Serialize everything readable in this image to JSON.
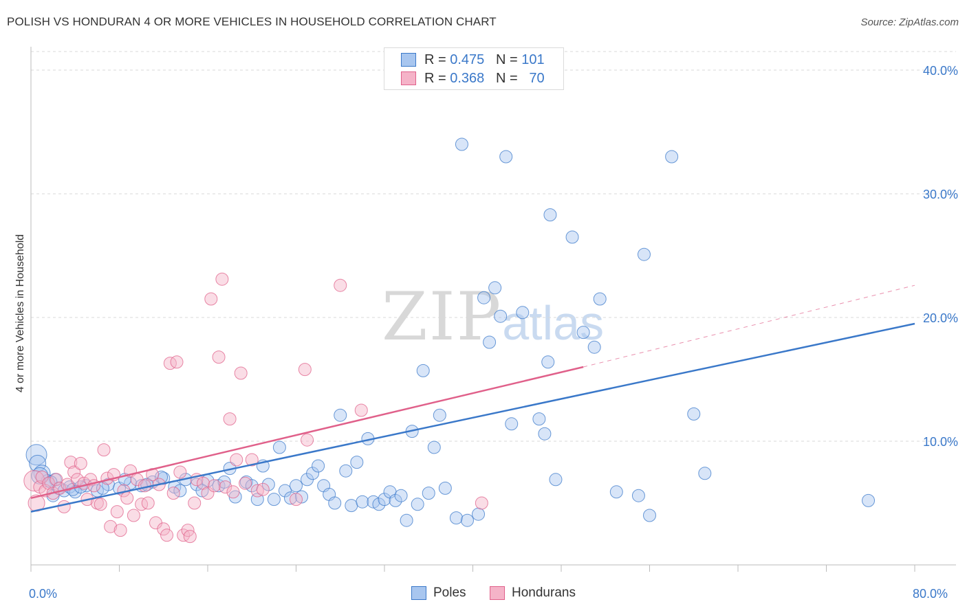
{
  "title": "POLISH VS HONDURAN 4 OR MORE VEHICLES IN HOUSEHOLD CORRELATION CHART",
  "source": "Source: ZipAtlas.com",
  "watermark": {
    "zip": "ZIP",
    "atlas": "atlas"
  },
  "colors": {
    "poles": "#3a78c9",
    "poles_fill": "#a8c6ef",
    "hondurans": "#e0608a",
    "hondurans_fill": "#f5b3c8",
    "grid": "#d9d9d9",
    "tick_label": "#3a78c9"
  },
  "legend": {
    "rows": [
      {
        "r_label": "R =",
        "r_value": "0.475",
        "n_label": "N =",
        "n_value": "101"
      },
      {
        "r_label": "R =",
        "r_value": "0.368",
        "n_label": "N =",
        "n_value": "70"
      }
    ]
  },
  "bottom_legend": {
    "poles": "Poles",
    "hondurans": "Hondurans"
  },
  "chart_data": {
    "type": "scatter",
    "title": "POLISH VS HONDURAN 4 OR MORE VEHICLES IN HOUSEHOLD CORRELATION CHART",
    "xlabel": "",
    "ylabel": "4 or more Vehicles in Household",
    "xlim": [
      0,
      80
    ],
    "ylim": [
      0,
      41.5
    ],
    "x_tick_labels": [
      {
        "value": 0,
        "label": "0.0%"
      },
      {
        "value": 80,
        "label": "80.0%"
      }
    ],
    "y_tick_labels": [
      {
        "value": 10,
        "label": "10.0%"
      },
      {
        "value": 20,
        "label": "20.0%"
      },
      {
        "value": 30,
        "label": "30.0%"
      },
      {
        "value": 40,
        "label": "40.0%"
      }
    ],
    "grid": true,
    "series": [
      {
        "name": "Poles",
        "r": 0.475,
        "n": 101,
        "trend": {
          "x0": 0,
          "y0": 4.3,
          "x1": 80,
          "y1": 19.5
        },
        "points": [
          [
            0.5,
            8.9,
            3
          ],
          [
            0.6,
            8.2,
            2
          ],
          [
            1.0,
            7.4,
            2
          ],
          [
            1.5,
            6.8,
            1
          ],
          [
            2.0,
            5.6,
            1
          ],
          [
            2.5,
            6.2,
            1
          ],
          [
            3.0,
            6.0,
            1
          ],
          [
            3.5,
            6.3,
            1
          ],
          [
            4.0,
            5.9,
            1
          ],
          [
            5.0,
            6.4,
            1
          ],
          [
            6.0,
            6.0,
            1
          ],
          [
            7.0,
            6.5,
            1
          ],
          [
            8.0,
            6.2,
            1
          ],
          [
            9.0,
            6.6,
            1
          ],
          [
            10.0,
            6.4,
            1
          ],
          [
            11.0,
            6.7,
            1
          ],
          [
            12.0,
            7.0,
            1
          ],
          [
            13.0,
            6.3,
            1
          ],
          [
            14.0,
            6.9,
            1
          ],
          [
            15.0,
            6.5,
            1
          ],
          [
            16.0,
            6.8,
            1
          ],
          [
            17.0,
            6.4,
            1
          ],
          [
            2.2,
            6.9,
            1
          ],
          [
            3.8,
            6.1,
            1
          ],
          [
            6.5,
            6.2,
            1
          ],
          [
            8.5,
            6.9,
            1
          ],
          [
            10.5,
            6.5,
            1
          ],
          [
            11.8,
            7.1,
            1
          ],
          [
            13.5,
            6.0,
            1
          ],
          [
            15.5,
            6.0,
            1
          ],
          [
            17.5,
            6.7,
            1
          ],
          [
            18.0,
            7.8,
            1
          ],
          [
            18.5,
            5.5,
            1
          ],
          [
            19.5,
            6.7,
            1
          ],
          [
            20.0,
            6.4,
            1
          ],
          [
            20.5,
            5.3,
            1
          ],
          [
            21.0,
            8.0,
            1
          ],
          [
            21.5,
            6.5,
            1
          ],
          [
            22.0,
            5.3,
            1
          ],
          [
            22.5,
            9.5,
            1
          ],
          [
            23.0,
            6.0,
            1
          ],
          [
            23.5,
            5.4,
            1
          ],
          [
            24.0,
            6.4,
            1
          ],
          [
            24.5,
            5.5,
            1
          ],
          [
            25.0,
            6.9,
            1
          ],
          [
            25.5,
            7.4,
            1
          ],
          [
            26.0,
            8.0,
            1
          ],
          [
            26.5,
            6.4,
            1
          ],
          [
            27.0,
            5.7,
            1
          ],
          [
            27.5,
            5.0,
            1
          ],
          [
            28.0,
            12.1,
            1
          ],
          [
            28.5,
            7.6,
            1
          ],
          [
            29.0,
            4.8,
            1
          ],
          [
            29.5,
            8.3,
            1
          ],
          [
            30.0,
            5.1,
            1
          ],
          [
            30.5,
            10.2,
            1
          ],
          [
            31.0,
            5.1,
            1
          ],
          [
            31.5,
            4.9,
            1
          ],
          [
            32.0,
            5.3,
            1
          ],
          [
            32.5,
            5.9,
            1
          ],
          [
            33.0,
            5.2,
            1
          ],
          [
            33.5,
            5.6,
            1
          ],
          [
            34.0,
            3.6,
            1
          ],
          [
            34.5,
            10.8,
            1
          ],
          [
            35.0,
            4.9,
            1
          ],
          [
            35.5,
            15.7,
            1
          ],
          [
            36.0,
            5.8,
            1
          ],
          [
            36.5,
            9.5,
            1
          ],
          [
            37.0,
            12.1,
            1
          ],
          [
            37.5,
            6.2,
            1
          ],
          [
            38.5,
            3.8,
            1
          ],
          [
            39.0,
            34.0,
            1
          ],
          [
            39.5,
            3.6,
            1
          ],
          [
            40.5,
            4.1,
            1
          ],
          [
            41.0,
            21.6,
            1
          ],
          [
            41.5,
            18.0,
            1
          ],
          [
            42.0,
            22.4,
            1
          ],
          [
            42.5,
            20.1,
            1
          ],
          [
            43.0,
            33.0,
            1
          ],
          [
            43.5,
            11.4,
            1
          ],
          [
            44.5,
            20.4,
            1
          ],
          [
            46.0,
            11.8,
            1
          ],
          [
            46.5,
            10.6,
            1
          ],
          [
            46.8,
            16.4,
            1
          ],
          [
            47.0,
            28.3,
            1
          ],
          [
            47.5,
            6.9,
            1
          ],
          [
            49.0,
            26.5,
            1
          ],
          [
            50.0,
            18.8,
            1
          ],
          [
            51.0,
            17.6,
            1
          ],
          [
            51.5,
            21.5,
            1
          ],
          [
            53.0,
            5.9,
            1
          ],
          [
            55.0,
            5.6,
            1
          ],
          [
            55.5,
            25.1,
            1
          ],
          [
            56.0,
            4.0,
            1
          ],
          [
            58.0,
            33.0,
            1
          ],
          [
            60.0,
            12.2,
            1
          ],
          [
            61.0,
            7.4,
            1
          ],
          [
            75.8,
            5.2,
            1
          ],
          [
            0.8,
            7.2,
            2
          ],
          [
            1.8,
            6.7,
            1
          ],
          [
            4.5,
            6.3,
            1
          ]
        ]
      },
      {
        "name": "Hondurans",
        "r": 0.368,
        "n": 70,
        "trend": {
          "x0": 0,
          "y0": 5.4,
          "x1": 50,
          "y1": 16.0,
          "dash_x1": 80,
          "dash_y1": 22.6
        },
        "points": [
          [
            0.3,
            6.8,
            3
          ],
          [
            0.5,
            5.0,
            2
          ],
          [
            0.8,
            6.3,
            1
          ],
          [
            1.0,
            7.1,
            1
          ],
          [
            1.3,
            6.0,
            1
          ],
          [
            1.6,
            6.6,
            1
          ],
          [
            2.0,
            5.8,
            1
          ],
          [
            2.3,
            6.9,
            1
          ],
          [
            2.6,
            6.2,
            1
          ],
          [
            3.0,
            4.7,
            1
          ],
          [
            3.3,
            6.5,
            1
          ],
          [
            3.6,
            8.3,
            1
          ],
          [
            3.9,
            7.5,
            1
          ],
          [
            4.2,
            6.9,
            1
          ],
          [
            4.5,
            8.2,
            1
          ],
          [
            4.8,
            6.6,
            1
          ],
          [
            5.1,
            5.3,
            1
          ],
          [
            5.4,
            6.9,
            1
          ],
          [
            5.7,
            6.4,
            1
          ],
          [
            6.0,
            5.0,
            1
          ],
          [
            6.3,
            4.9,
            1
          ],
          [
            6.6,
            9.3,
            1
          ],
          [
            6.9,
            7.0,
            1
          ],
          [
            7.2,
            3.1,
            1
          ],
          [
            7.5,
            7.3,
            1
          ],
          [
            7.8,
            4.3,
            1
          ],
          [
            8.1,
            2.8,
            1
          ],
          [
            8.4,
            6.0,
            1
          ],
          [
            8.7,
            5.4,
            1
          ],
          [
            9.0,
            7.6,
            1
          ],
          [
            9.3,
            4.0,
            1
          ],
          [
            9.6,
            6.9,
            1
          ],
          [
            10.0,
            4.9,
            1
          ],
          [
            10.3,
            6.4,
            1
          ],
          [
            10.6,
            5.0,
            1
          ],
          [
            11.0,
            7.3,
            1
          ],
          [
            11.3,
            3.4,
            1
          ],
          [
            11.6,
            6.5,
            1
          ],
          [
            12.0,
            2.9,
            1
          ],
          [
            12.3,
            2.4,
            1
          ],
          [
            12.6,
            16.3,
            1
          ],
          [
            12.9,
            5.8,
            1
          ],
          [
            13.2,
            16.4,
            1
          ],
          [
            13.5,
            7.5,
            1
          ],
          [
            13.8,
            2.4,
            1
          ],
          [
            14.2,
            2.8,
            1
          ],
          [
            14.4,
            2.3,
            1
          ],
          [
            14.8,
            5.0,
            1
          ],
          [
            15.0,
            6.9,
            1
          ],
          [
            15.6,
            6.6,
            1
          ],
          [
            16.0,
            5.8,
            1
          ],
          [
            16.3,
            21.5,
            1
          ],
          [
            16.6,
            6.4,
            1
          ],
          [
            17.0,
            16.8,
            1
          ],
          [
            17.3,
            23.1,
            1
          ],
          [
            17.6,
            6.3,
            1
          ],
          [
            18.0,
            11.8,
            1
          ],
          [
            18.3,
            5.9,
            1
          ],
          [
            18.6,
            8.5,
            1
          ],
          [
            19.0,
            15.5,
            1
          ],
          [
            19.4,
            6.6,
            1
          ],
          [
            20.0,
            8.5,
            1
          ],
          [
            20.5,
            6.0,
            1
          ],
          [
            21.0,
            6.1,
            1
          ],
          [
            24.0,
            5.3,
            1
          ],
          [
            24.8,
            15.8,
            1
          ],
          [
            25.0,
            10.1,
            1
          ],
          [
            28.0,
            22.6,
            1
          ],
          [
            29.9,
            12.5,
            1
          ],
          [
            40.8,
            5.0,
            1
          ]
        ]
      }
    ]
  }
}
